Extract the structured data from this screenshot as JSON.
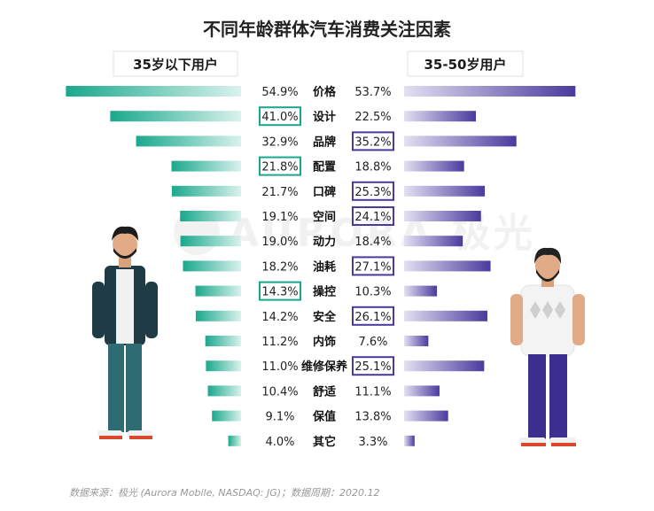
{
  "chart_data": {
    "type": "bar",
    "title": "不同年龄群体汽车消费关注因素",
    "categories": [
      "价格",
      "设计",
      "品牌",
      "配置",
      "口碑",
      "空间",
      "动力",
      "油耗",
      "操控",
      "安全",
      "内饰",
      "维修保养",
      "舒适",
      "保值",
      "其它"
    ],
    "series": [
      {
        "name": "35岁以下用户",
        "values": [
          54.9,
          41.0,
          32.9,
          21.8,
          21.7,
          19.1,
          19.0,
          18.2,
          14.3,
          14.2,
          11.2,
          11.0,
          10.4,
          9.1,
          4.0
        ],
        "color_dark": "#1aa88c",
        "color_light": "#d9f2ec"
      },
      {
        "name": "35-50岁用户",
        "values": [
          53.7,
          22.5,
          35.2,
          18.8,
          25.3,
          24.1,
          18.4,
          27.1,
          10.3,
          26.1,
          7.6,
          25.1,
          11.1,
          13.8,
          3.3
        ],
        "color_dark": "#4b3a9e",
        "color_light": "#e3e0f2"
      }
    ],
    "highlighted": {
      "35岁以下用户": [
        "设计",
        "配置",
        "操控"
      ],
      "35-50岁用户": [
        "品牌",
        "口碑",
        "空间",
        "油耗",
        "安全",
        "维修保养"
      ]
    },
    "highlight_colors": {
      "35岁以下用户": "#1aa88c",
      "35-50岁用户": "#4b3a9e"
    },
    "value_suffix": "%"
  },
  "source_note": "数据来源：极光 (Aurora Mobile, NASDAQ: JG)；数据周期：2020.12",
  "watermark": "AURORA 极光"
}
